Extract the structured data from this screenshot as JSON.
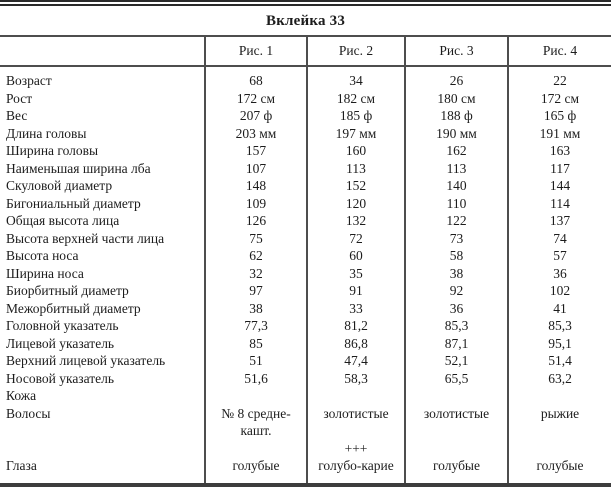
{
  "table": {
    "title": "Вклейка 33",
    "columns": [
      "Рис. 1",
      "Рис. 2",
      "Рис. 3",
      "Рис. 4"
    ],
    "rows": [
      {
        "label": "Возраст",
        "values": [
          "68",
          "34",
          "26",
          "22"
        ]
      },
      {
        "label": "Рост",
        "values": [
          "172 см",
          "182 см",
          "180 см",
          "172 см"
        ]
      },
      {
        "label": "Вес",
        "values": [
          "207 ф",
          "185 ф",
          "188 ф",
          "165 ф"
        ]
      },
      {
        "label": "Длина головы",
        "values": [
          "203 мм",
          "197 мм",
          "190 мм",
          "191 мм"
        ]
      },
      {
        "label": "Ширина головы",
        "values": [
          "157",
          "160",
          "162",
          "163"
        ]
      },
      {
        "label": "Наименьшая ширина лба",
        "values": [
          "107",
          "113",
          "113",
          "117"
        ]
      },
      {
        "label": "Скуловой диаметр",
        "values": [
          "148",
          "152",
          "140",
          "144"
        ]
      },
      {
        "label": "Бигониальный диаметр",
        "values": [
          "109",
          "120",
          "110",
          "114"
        ]
      },
      {
        "label": "Общая высота лица",
        "values": [
          "126",
          "132",
          "122",
          "137"
        ]
      },
      {
        "label": "Высота верхней части лица",
        "values": [
          "75",
          "72",
          "73",
          "74"
        ]
      },
      {
        "label": "Высота носа",
        "values": [
          "62",
          "60",
          "58",
          "57"
        ]
      },
      {
        "label": "Ширина носа",
        "values": [
          "32",
          "35",
          "38",
          "36"
        ]
      },
      {
        "label": "Биорбитный диаметр",
        "values": [
          "97",
          "91",
          "92",
          "102"
        ]
      },
      {
        "label": "Межорбитный диаметр",
        "values": [
          "38",
          "33",
          "36",
          "41"
        ]
      },
      {
        "label": "Головной указатель",
        "values": [
          "77,3",
          "81,2",
          "85,3",
          "85,3"
        ]
      },
      {
        "label": "Лицевой указатель",
        "values": [
          "85",
          "86,8",
          "87,1",
          "95,1"
        ]
      },
      {
        "label": "Верхний лицевой указатель",
        "values": [
          "51",
          "47,4",
          "52,1",
          "51,4"
        ]
      },
      {
        "label": "Носовой указатель",
        "values": [
          "51,6",
          "58,3",
          "65,5",
          "63,2"
        ]
      },
      {
        "label": "Кожа",
        "values": [
          "",
          "",
          "",
          ""
        ]
      },
      {
        "label": "Волосы",
        "values": [
          "№ 8 средне-кашт.",
          "золотистые",
          "золотистые",
          "рыжие"
        ]
      },
      {
        "label": "",
        "values": [
          "",
          "+++",
          "",
          ""
        ]
      },
      {
        "label": "Глаза",
        "values": [
          "голубые",
          "голубо-карие",
          "голубые",
          "голубые"
        ]
      }
    ]
  },
  "colors": {
    "text": "#1c1c1c",
    "rule": "#4d4d4d",
    "background": "#ffffff"
  }
}
